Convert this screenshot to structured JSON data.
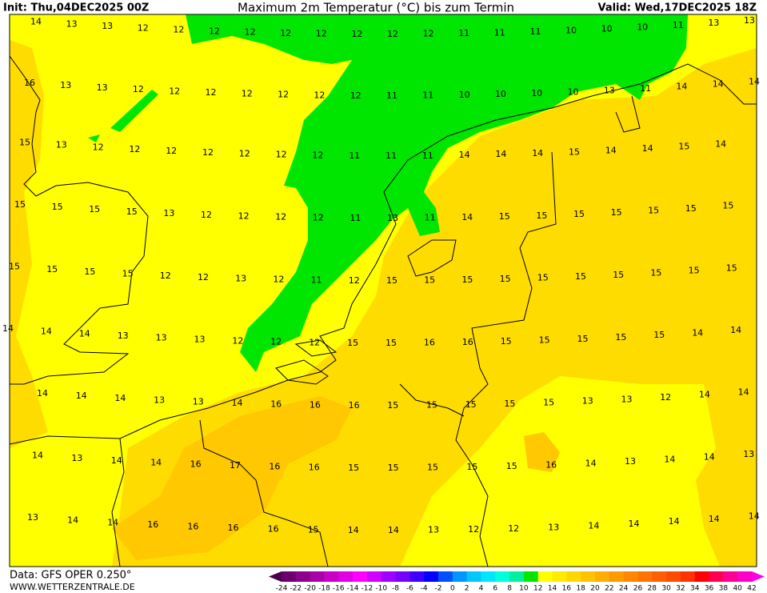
{
  "header": {
    "init": "Init: Thu,04DEC2025 00Z",
    "title": "Maximum 2m Temperatur (°C) bis zum Termin",
    "valid": "Valid: Wed,17DEC2025 18Z"
  },
  "map": {
    "rows": [
      [
        14,
        13,
        13,
        12,
        12,
        12,
        12,
        12,
        12,
        12,
        12,
        12,
        11,
        11,
        11,
        10,
        10,
        10,
        11,
        13,
        13
      ],
      [
        16,
        13,
        13,
        12,
        12,
        12,
        12,
        12,
        12,
        12,
        11,
        11,
        10,
        10,
        10,
        10,
        13,
        11,
        14,
        14,
        14
      ],
      [
        15,
        13,
        12,
        12,
        12,
        12,
        12,
        12,
        12,
        11,
        11,
        11,
        14,
        14,
        14,
        15,
        14,
        14,
        15,
        14
      ],
      [
        15,
        15,
        15,
        15,
        13,
        12,
        12,
        12,
        12,
        11,
        13,
        11,
        14,
        15,
        15,
        15,
        15,
        15,
        15,
        15
      ],
      [
        15,
        15,
        15,
        15,
        12,
        12,
        13,
        12,
        11,
        12,
        15,
        15,
        15,
        15,
        15,
        15,
        15,
        15,
        15,
        15
      ],
      [
        14,
        14,
        14,
        13,
        13,
        13,
        12,
        12,
        12,
        15,
        15,
        16,
        16,
        15,
        15,
        15,
        15,
        15,
        14,
        14
      ],
      [
        14,
        14,
        14,
        13,
        13,
        14,
        16,
        16,
        16,
        15,
        15,
        15,
        15,
        15,
        13,
        13,
        12,
        14,
        14
      ],
      [
        14,
        13,
        14,
        14,
        16,
        17,
        16,
        16,
        15,
        15,
        15,
        15,
        15,
        16,
        14,
        13,
        14,
        14,
        13
      ],
      [
        13,
        14,
        14,
        16,
        16,
        16,
        16,
        15,
        14,
        14,
        13,
        12,
        12,
        13,
        14,
        14,
        14,
        14,
        14
      ]
    ]
  },
  "colorbar": {
    "labels": [
      -24,
      -22,
      -20,
      -18,
      -16,
      -14,
      -12,
      -10,
      -8,
      -6,
      -4,
      -2,
      0,
      2,
      4,
      6,
      8,
      10,
      12,
      14,
      16,
      18,
      20,
      22,
      24,
      26,
      28,
      30,
      32,
      34,
      36,
      38,
      40,
      42
    ]
  },
  "footer": {
    "data": "Data: GFS OPER 0.250°",
    "site": "WWW.WETTERZENTRALE.DE"
  }
}
